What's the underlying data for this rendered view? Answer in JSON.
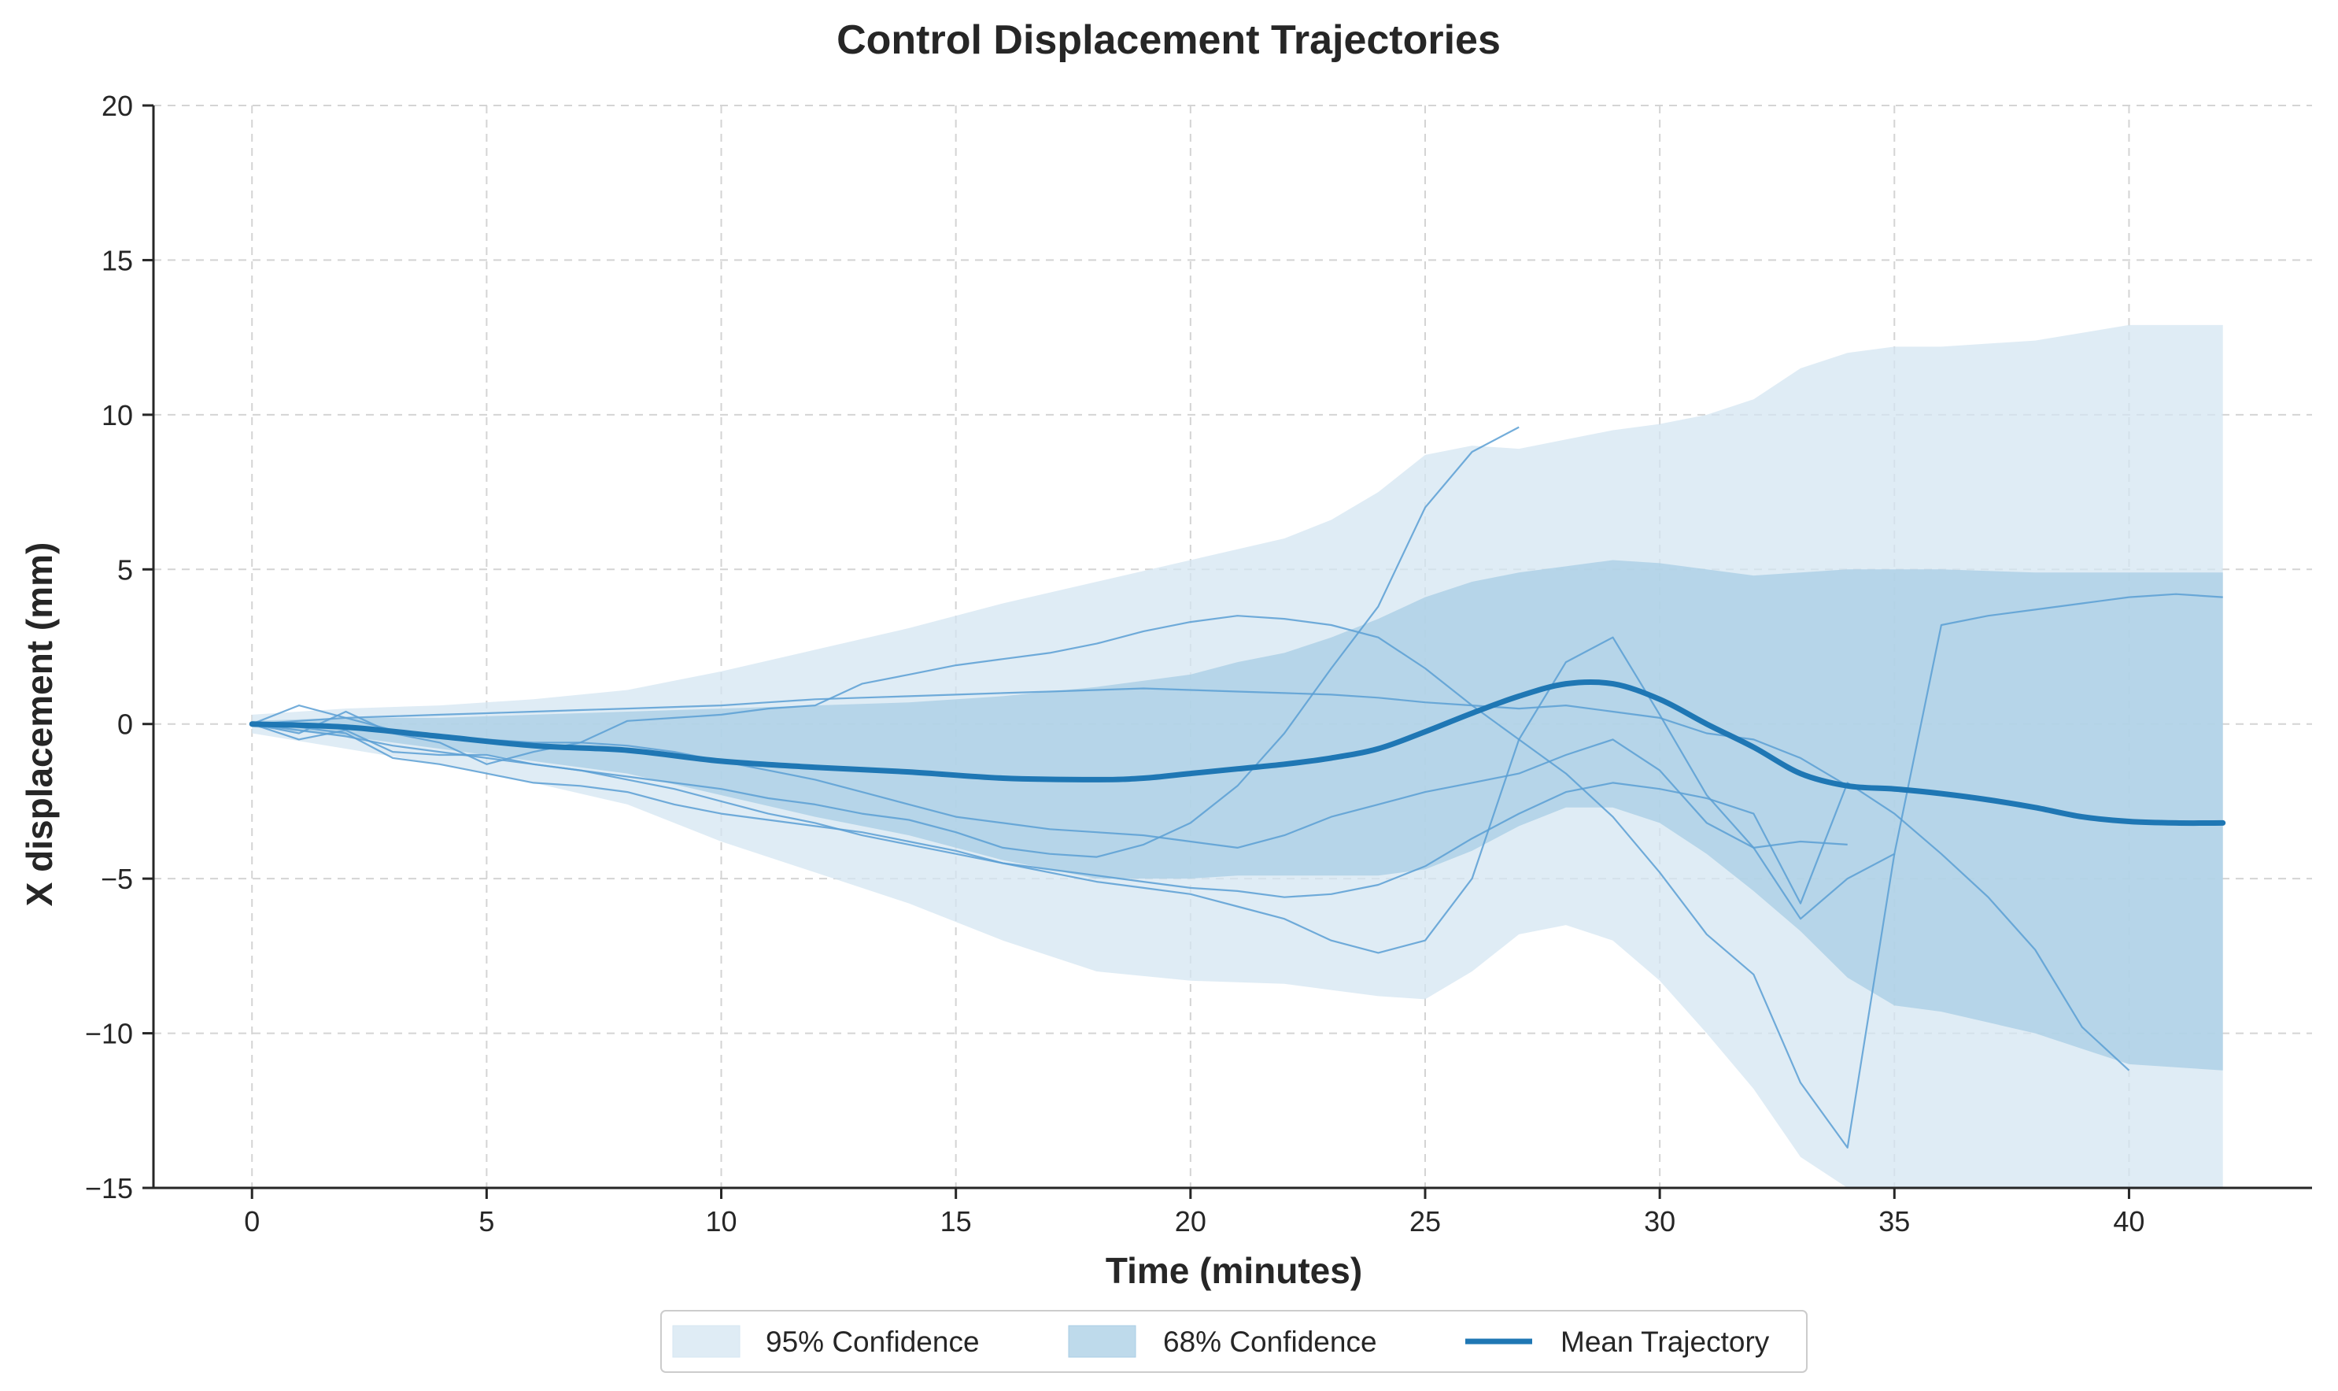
{
  "chart_data": {
    "type": "line",
    "title": "Control Displacement Trajectories",
    "xlabel": "Time (minutes)",
    "ylabel": "X displacement (mm)",
    "xlim": [
      -2.1,
      43.9
    ],
    "ylim": [
      -15,
      20
    ],
    "xticks": [
      0,
      5,
      10,
      15,
      20,
      25,
      30,
      35,
      40
    ],
    "yticks": [
      -15,
      -10,
      -5,
      0,
      5,
      10,
      15,
      20
    ],
    "xtick_labels": [
      "0",
      "5",
      "10",
      "15",
      "20",
      "25",
      "30",
      "35",
      "40"
    ],
    "ytick_labels": [
      "−15",
      "−10",
      "−5",
      "0",
      "5",
      "10",
      "15",
      "20"
    ],
    "grid": true,
    "legend_position": "bottom-center",
    "legend": [
      {
        "label": "95% Confidence",
        "kind": "band95"
      },
      {
        "label": "68% Confidence",
        "kind": "band68"
      },
      {
        "label": "Mean Trajectory",
        "kind": "mean"
      }
    ],
    "colors": {
      "mean": "#1f77b4",
      "individual": "#5a9fd4",
      "band95": "#d4e6f1",
      "band68": "#a8cde4"
    },
    "band95": {
      "x": [
        0,
        2,
        4,
        6,
        8,
        10,
        12,
        14,
        16,
        18,
        20,
        22,
        23,
        24,
        25,
        26,
        27,
        28,
        29,
        30,
        31,
        32,
        33,
        34,
        35,
        36,
        38,
        40,
        42
      ],
      "upper": [
        0.3,
        0.5,
        0.6,
        0.8,
        1.1,
        1.7,
        2.4,
        3.1,
        3.9,
        4.6,
        5.3,
        6.0,
        6.6,
        7.5,
        8.7,
        9.0,
        8.9,
        9.2,
        9.5,
        9.7,
        10.0,
        10.5,
        11.5,
        12.0,
        12.2,
        12.2,
        12.4,
        12.9,
        12.9
      ],
      "lower": [
        -0.3,
        -0.8,
        -1.3,
        -1.9,
        -2.6,
        -3.8,
        -4.8,
        -5.8,
        -7.0,
        -8.0,
        -8.3,
        -8.4,
        -8.6,
        -8.8,
        -8.9,
        -8.0,
        -6.8,
        -6.5,
        -7.0,
        -8.3,
        -10.0,
        -11.8,
        -14.0,
        -16.5,
        -17.0,
        -17.0,
        -17.0,
        -17.0,
        -17.0
      ]
    },
    "band68": {
      "x": [
        0,
        2,
        4,
        6,
        8,
        10,
        12,
        14,
        16,
        18,
        20,
        21,
        22,
        23,
        24,
        25,
        26,
        27,
        28,
        29,
        30,
        31,
        32,
        33,
        34,
        35,
        36,
        38,
        40,
        42
      ],
      "upper": [
        0.1,
        0.2,
        0.2,
        0.3,
        0.4,
        0.5,
        0.6,
        0.7,
        0.9,
        1.2,
        1.6,
        2.0,
        2.3,
        2.8,
        3.4,
        4.1,
        4.6,
        4.9,
        5.1,
        5.3,
        5.2,
        5.0,
        4.8,
        4.9,
        5.0,
        5.0,
        5.0,
        4.9,
        4.9,
        4.9
      ],
      "lower": [
        -0.1,
        -0.4,
        -0.8,
        -1.2,
        -1.6,
        -2.3,
        -3.0,
        -3.6,
        -4.4,
        -5.0,
        -5.0,
        -4.9,
        -4.9,
        -4.9,
        -4.9,
        -4.7,
        -4.1,
        -3.3,
        -2.7,
        -2.7,
        -3.2,
        -4.2,
        -5.4,
        -6.7,
        -8.2,
        -9.1,
        -9.3,
        -10.0,
        -11.0,
        -11.2
      ]
    },
    "mean": {
      "x": [
        0,
        2,
        4,
        6,
        8,
        10,
        12,
        14,
        16,
        18,
        19,
        20,
        21,
        22,
        23,
        24,
        25,
        26,
        27,
        28,
        29,
        30,
        31,
        32,
        33,
        34,
        35,
        36,
        37,
        38,
        39,
        40,
        41,
        42
      ],
      "y": [
        0,
        -0.1,
        -0.4,
        -0.7,
        -0.85,
        -1.2,
        -1.4,
        -1.55,
        -1.75,
        -1.8,
        -1.75,
        -1.6,
        -1.45,
        -1.3,
        -1.1,
        -0.8,
        -0.25,
        0.35,
        0.9,
        1.3,
        1.3,
        0.8,
        0.0,
        -0.75,
        -1.6,
        -2.0,
        -2.1,
        -2.25,
        -2.45,
        -2.7,
        -3.0,
        -3.15,
        -3.2,
        -3.2
      ]
    },
    "series": [
      {
        "x": [
          0,
          1,
          2,
          3,
          4,
          5,
          6,
          7,
          8,
          9,
          10,
          11,
          12,
          13,
          14,
          15,
          16,
          17,
          18,
          19,
          20,
          21,
          22,
          23,
          24,
          25,
          26,
          27
        ],
        "y": [
          0,
          -0.5,
          -0.2,
          -0.9,
          -1.0,
          -1.0,
          -1.3,
          -1.5,
          -1.7,
          -1.9,
          -2.1,
          -2.4,
          -2.6,
          -2.9,
          -3.1,
          -3.5,
          -4.0,
          -4.2,
          -4.3,
          -3.9,
          -3.2,
          -2.0,
          -0.3,
          1.8,
          3.8,
          7.0,
          8.8,
          9.6
        ]
      },
      {
        "x": [
          0,
          1,
          2,
          3,
          4,
          5,
          6,
          7,
          8,
          9,
          10,
          11,
          12,
          13,
          14,
          15,
          16,
          17,
          18,
          19,
          20,
          21,
          22,
          23,
          24,
          25,
          26,
          27,
          28,
          29,
          30,
          31,
          32,
          33,
          34
        ],
        "y": [
          0,
          0.1,
          0.2,
          0.25,
          0.3,
          0.35,
          0.4,
          0.45,
          0.5,
          0.55,
          0.6,
          0.7,
          0.8,
          0.85,
          0.9,
          0.95,
          1.0,
          1.05,
          1.1,
          1.15,
          1.1,
          1.05,
          1.0,
          0.95,
          0.85,
          0.7,
          0.6,
          0.5,
          0.6,
          0.4,
          0.2,
          -0.3,
          -0.5,
          -1.1,
          -2.0
        ]
      },
      {
        "x": [
          0,
          1,
          2,
          3,
          4,
          5,
          6,
          7,
          8,
          9,
          10,
          11,
          12,
          13,
          14,
          15,
          16,
          17,
          18,
          19,
          20,
          21,
          22,
          23,
          24,
          25,
          26,
          27,
          28,
          29,
          30,
          31,
          32,
          33,
          34
        ],
        "y": [
          0,
          0.6,
          0.2,
          -0.2,
          -0.4,
          -0.5,
          -0.6,
          -0.6,
          -0.7,
          -0.9,
          -1.2,
          -1.5,
          -1.8,
          -2.2,
          -2.6,
          -3.0,
          -3.2,
          -3.4,
          -3.5,
          -3.6,
          -3.8,
          -4.0,
          -3.6,
          -3.0,
          -2.6,
          -2.2,
          -1.9,
          -1.6,
          -1.0,
          -0.5,
          -1.5,
          -3.2,
          -4.0,
          -3.8,
          -3.9
        ]
      },
      {
        "x": [
          0,
          1,
          2,
          3,
          4,
          5,
          6,
          7,
          8,
          9,
          10,
          11,
          12,
          13,
          14,
          15,
          16,
          17,
          18,
          19,
          20,
          21,
          22,
          23,
          24,
          25,
          26,
          27,
          28,
          29,
          30,
          31,
          32,
          33,
          34,
          35
        ],
        "y": [
          0,
          -0.3,
          0.4,
          -0.3,
          -0.6,
          -1.3,
          -0.9,
          -0.6,
          0.1,
          0.2,
          0.3,
          0.5,
          0.6,
          1.3,
          1.6,
          1.9,
          2.1,
          2.3,
          2.6,
          3.0,
          3.3,
          3.5,
          3.4,
          3.2,
          2.8,
          1.8,
          0.6,
          -0.5,
          -1.6,
          -3.0,
          -4.8,
          -6.8,
          -8.1,
          -11.6,
          -13.7,
          -4.2
        ]
      },
      {
        "x": [
          0,
          1,
          2,
          3,
          4,
          5,
          6,
          7,
          8,
          9,
          10,
          11,
          12,
          13,
          14,
          15,
          16,
          17,
          18,
          19,
          20,
          21,
          22,
          23,
          24,
          25,
          26,
          27,
          28,
          29,
          30,
          31,
          32,
          33,
          34,
          35,
          36,
          37,
          38,
          39,
          40,
          41,
          42
        ],
        "y": [
          0,
          -0.1,
          -0.3,
          -1.1,
          -1.3,
          -1.6,
          -1.9,
          -2.0,
          -2.2,
          -2.6,
          -2.9,
          -3.1,
          -3.3,
          -3.5,
          -3.8,
          -4.1,
          -4.5,
          -4.8,
          -5.1,
          -5.3,
          -5.5,
          -5.9,
          -6.3,
          -7.0,
          -7.4,
          -7.0,
          -5.0,
          -0.5,
          2.0,
          2.8,
          0.3,
          -2.3,
          -4.0,
          -6.3,
          -5.0,
          -4.2,
          3.2,
          3.5,
          3.7,
          3.9,
          4.1,
          4.2,
          4.1
        ]
      },
      {
        "x": [
          0,
          1,
          2,
          3,
          4,
          5,
          6,
          7,
          8,
          9,
          10,
          11,
          12,
          13,
          14,
          15,
          16,
          17,
          18,
          19,
          20,
          21,
          22,
          23,
          24,
          25,
          26,
          27,
          28,
          29,
          30,
          31,
          32,
          33,
          34,
          35,
          36,
          37,
          38,
          39,
          40
        ],
        "y": [
          0,
          -0.2,
          -0.4,
          -0.7,
          -0.9,
          -1.1,
          -1.3,
          -1.5,
          -1.8,
          -2.1,
          -2.5,
          -2.9,
          -3.2,
          -3.6,
          -3.9,
          -4.2,
          -4.5,
          -4.7,
          -4.9,
          -5.1,
          -5.3,
          -5.4,
          -5.6,
          -5.5,
          -5.2,
          -4.6,
          -3.7,
          -2.9,
          -2.2,
          -1.9,
          -2.1,
          -2.4,
          -2.9,
          -5.8,
          -1.9,
          -2.9,
          -4.2,
          -5.6,
          -7.3,
          -9.8,
          -11.2
        ]
      }
    ]
  }
}
